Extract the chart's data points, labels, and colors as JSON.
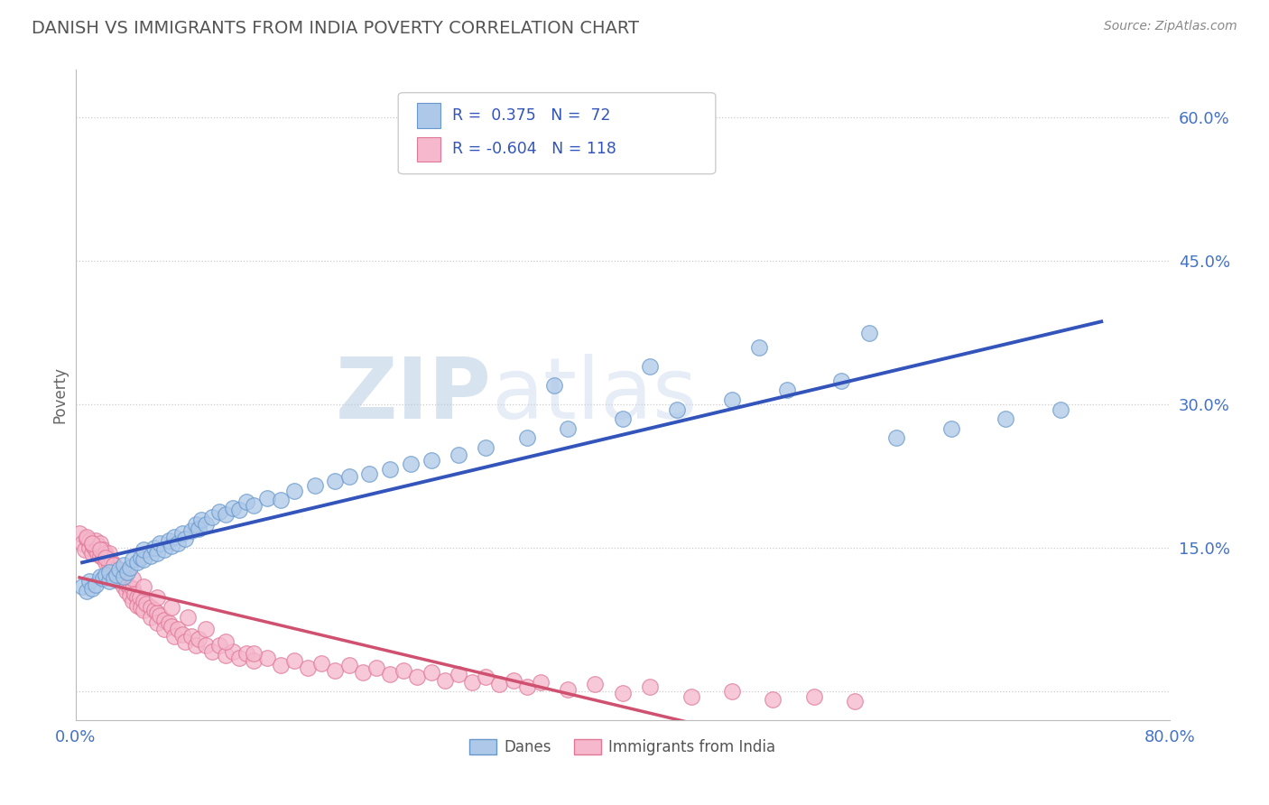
{
  "title": "DANISH VS IMMIGRANTS FROM INDIA POVERTY CORRELATION CHART",
  "source": "Source: ZipAtlas.com",
  "ylabel": "Poverty",
  "xlim": [
    0.0,
    0.8
  ],
  "ylim": [
    -0.03,
    0.65
  ],
  "yticks": [
    0.0,
    0.15,
    0.3,
    0.45,
    0.6
  ],
  "ytick_labels": [
    "",
    "15.0%",
    "30.0%",
    "45.0%",
    "60.0%"
  ],
  "danes_color": "#adc8e8",
  "danes_edge": "#6898cc",
  "india_color": "#f5b8cc",
  "india_edge": "#e07898",
  "danes_R": 0.375,
  "danes_N": 72,
  "india_R": -0.604,
  "india_N": 118,
  "danes_line_color": "#3355bb",
  "india_line_color": "#d05070",
  "watermark_zip": "ZIP",
  "watermark_atlas": "atlas",
  "legend_danes": "Danes",
  "legend_india": "Immigrants from India",
  "danes_scatter_x": [
    0.005,
    0.008,
    0.01,
    0.012,
    0.015,
    0.018,
    0.02,
    0.022,
    0.025,
    0.025,
    0.028,
    0.03,
    0.032,
    0.035,
    0.035,
    0.038,
    0.04,
    0.042,
    0.045,
    0.048,
    0.05,
    0.05,
    0.055,
    0.058,
    0.06,
    0.062,
    0.065,
    0.068,
    0.07,
    0.072,
    0.075,
    0.078,
    0.08,
    0.085,
    0.088,
    0.09,
    0.092,
    0.095,
    0.1,
    0.105,
    0.11,
    0.115,
    0.12,
    0.125,
    0.13,
    0.14,
    0.15,
    0.16,
    0.175,
    0.19,
    0.2,
    0.215,
    0.23,
    0.245,
    0.26,
    0.28,
    0.3,
    0.33,
    0.36,
    0.4,
    0.44,
    0.48,
    0.52,
    0.56,
    0.6,
    0.64,
    0.68,
    0.72,
    0.35,
    0.42,
    0.5,
    0.58
  ],
  "danes_scatter_y": [
    0.11,
    0.105,
    0.115,
    0.108,
    0.112,
    0.12,
    0.118,
    0.122,
    0.115,
    0.125,
    0.118,
    0.122,
    0.128,
    0.12,
    0.132,
    0.125,
    0.13,
    0.138,
    0.135,
    0.14,
    0.138,
    0.148,
    0.142,
    0.15,
    0.145,
    0.155,
    0.148,
    0.158,
    0.152,
    0.162,
    0.155,
    0.165,
    0.16,
    0.168,
    0.175,
    0.17,
    0.18,
    0.175,
    0.182,
    0.188,
    0.185,
    0.192,
    0.19,
    0.198,
    0.195,
    0.202,
    0.2,
    0.21,
    0.215,
    0.22,
    0.225,
    0.228,
    0.232,
    0.238,
    0.242,
    0.248,
    0.255,
    0.265,
    0.275,
    0.285,
    0.295,
    0.305,
    0.315,
    0.325,
    0.265,
    0.275,
    0.285,
    0.295,
    0.32,
    0.34,
    0.36,
    0.375
  ],
  "india_scatter_x": [
    0.003,
    0.005,
    0.007,
    0.008,
    0.01,
    0.01,
    0.012,
    0.012,
    0.013,
    0.015,
    0.015,
    0.016,
    0.017,
    0.018,
    0.018,
    0.02,
    0.02,
    0.022,
    0.022,
    0.023,
    0.024,
    0.025,
    0.025,
    0.026,
    0.027,
    0.028,
    0.028,
    0.03,
    0.03,
    0.032,
    0.032,
    0.033,
    0.035,
    0.035,
    0.036,
    0.037,
    0.038,
    0.04,
    0.04,
    0.042,
    0.042,
    0.043,
    0.045,
    0.045,
    0.047,
    0.048,
    0.05,
    0.05,
    0.052,
    0.055,
    0.055,
    0.058,
    0.06,
    0.06,
    0.062,
    0.065,
    0.065,
    0.068,
    0.07,
    0.072,
    0.075,
    0.078,
    0.08,
    0.085,
    0.088,
    0.09,
    0.095,
    0.1,
    0.105,
    0.11,
    0.115,
    0.12,
    0.125,
    0.13,
    0.14,
    0.15,
    0.16,
    0.17,
    0.18,
    0.19,
    0.2,
    0.21,
    0.22,
    0.23,
    0.24,
    0.25,
    0.26,
    0.27,
    0.28,
    0.29,
    0.3,
    0.31,
    0.32,
    0.33,
    0.34,
    0.36,
    0.38,
    0.4,
    0.42,
    0.45,
    0.48,
    0.51,
    0.54,
    0.57,
    0.008,
    0.012,
    0.018,
    0.022,
    0.028,
    0.035,
    0.042,
    0.05,
    0.06,
    0.07,
    0.082,
    0.095,
    0.11,
    0.13
  ],
  "india_scatter_y": [
    0.165,
    0.155,
    0.148,
    0.16,
    0.158,
    0.15,
    0.155,
    0.145,
    0.152,
    0.148,
    0.158,
    0.145,
    0.152,
    0.142,
    0.155,
    0.148,
    0.14,
    0.145,
    0.135,
    0.142,
    0.138,
    0.132,
    0.145,
    0.128,
    0.135,
    0.125,
    0.132,
    0.128,
    0.12,
    0.125,
    0.115,
    0.122,
    0.118,
    0.11,
    0.118,
    0.105,
    0.112,
    0.108,
    0.1,
    0.108,
    0.095,
    0.102,
    0.098,
    0.09,
    0.098,
    0.088,
    0.095,
    0.085,
    0.092,
    0.088,
    0.078,
    0.085,
    0.082,
    0.072,
    0.08,
    0.075,
    0.065,
    0.072,
    0.068,
    0.058,
    0.065,
    0.06,
    0.052,
    0.058,
    0.048,
    0.055,
    0.048,
    0.042,
    0.048,
    0.038,
    0.042,
    0.035,
    0.04,
    0.032,
    0.035,
    0.028,
    0.032,
    0.025,
    0.03,
    0.022,
    0.028,
    0.02,
    0.025,
    0.018,
    0.022,
    0.015,
    0.02,
    0.012,
    0.018,
    0.01,
    0.015,
    0.008,
    0.012,
    0.005,
    0.01,
    0.002,
    0.008,
    -0.002,
    0.005,
    -0.005,
    0.0,
    -0.008,
    -0.005,
    -0.01,
    0.162,
    0.155,
    0.148,
    0.14,
    0.132,
    0.125,
    0.118,
    0.11,
    0.098,
    0.088,
    0.078,
    0.065,
    0.052,
    0.04
  ]
}
